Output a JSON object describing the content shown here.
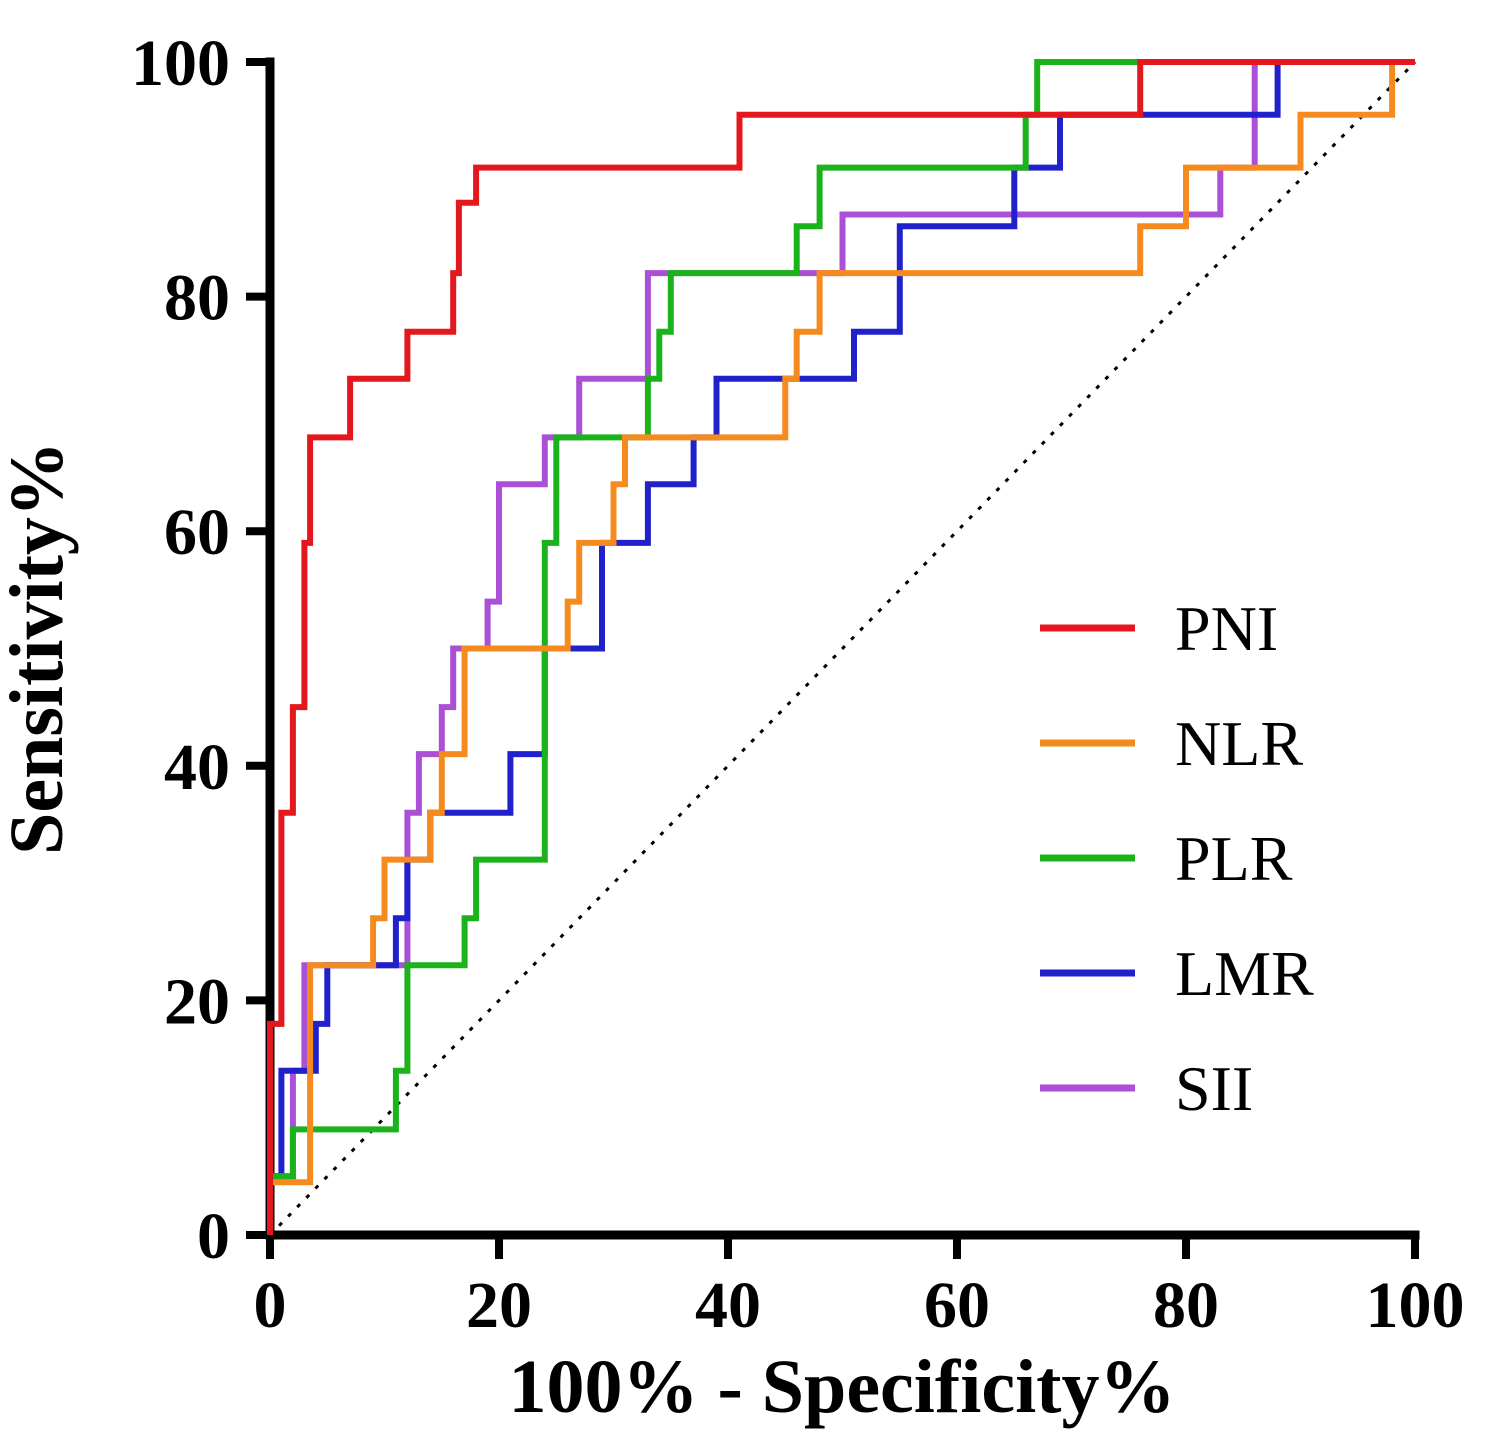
{
  "chart_data": {
    "type": "line",
    "subtype": "roc-curves",
    "title": "",
    "xlabel": "100% - Specificity%",
    "ylabel": "Sensitivity%",
    "xlim": [
      0,
      100
    ],
    "ylim": [
      0,
      100
    ],
    "xticks": [
      "0",
      "20",
      "40",
      "60",
      "80",
      "100"
    ],
    "ytick_values": [
      0,
      20,
      40,
      60,
      80,
      100
    ],
    "yticks": [
      "0",
      "20",
      "40",
      "60",
      "80",
      "100"
    ],
    "xtick_values": [
      0,
      20,
      40,
      60,
      80,
      100
    ],
    "grid": false,
    "legend_position": "inside-right",
    "reference_line": {
      "name": "chance-diagonal",
      "style": "dotted",
      "color": "#000000",
      "points": [
        [
          0,
          0
        ],
        [
          100,
          100
        ]
      ]
    },
    "series": [
      {
        "name": "PNI",
        "color": "#e4181c",
        "points": [
          [
            0,
            0
          ],
          [
            0,
            18
          ],
          [
            1,
            18
          ],
          [
            1,
            36
          ],
          [
            2,
            36
          ],
          [
            2,
            45
          ],
          [
            3,
            45
          ],
          [
            3,
            59
          ],
          [
            3.5,
            59
          ],
          [
            3.5,
            68
          ],
          [
            7,
            68
          ],
          [
            7,
            73
          ],
          [
            12,
            73
          ],
          [
            12,
            77
          ],
          [
            16,
            77
          ],
          [
            16,
            82
          ],
          [
            16.5,
            82
          ],
          [
            16.5,
            88
          ],
          [
            18,
            88
          ],
          [
            18,
            91
          ],
          [
            41,
            91
          ],
          [
            41,
            95.5
          ],
          [
            76,
            95.5
          ],
          [
            76,
            100
          ],
          [
            100,
            100
          ]
        ]
      },
      {
        "name": "NLR",
        "color": "#f58b1f",
        "points": [
          [
            0,
            0
          ],
          [
            0,
            4.5
          ],
          [
            3.5,
            4.5
          ],
          [
            3.5,
            23
          ],
          [
            9,
            23
          ],
          [
            9,
            27
          ],
          [
            10,
            27
          ],
          [
            10,
            32
          ],
          [
            14,
            32
          ],
          [
            14,
            36
          ],
          [
            15,
            36
          ],
          [
            15,
            41
          ],
          [
            17,
            41
          ],
          [
            17,
            50
          ],
          [
            26,
            50
          ],
          [
            26,
            54
          ],
          [
            27,
            54
          ],
          [
            27,
            59
          ],
          [
            30,
            59
          ],
          [
            30,
            64
          ],
          [
            31,
            64
          ],
          [
            31,
            68
          ],
          [
            45,
            68
          ],
          [
            45,
            73
          ],
          [
            46,
            73
          ],
          [
            46,
            77
          ],
          [
            48,
            77
          ],
          [
            48,
            82
          ],
          [
            76,
            82
          ],
          [
            76,
            86
          ],
          [
            80,
            86
          ],
          [
            80,
            91
          ],
          [
            90,
            91
          ],
          [
            90,
            95.5
          ],
          [
            98,
            95.5
          ],
          [
            98,
            100
          ],
          [
            100,
            100
          ]
        ]
      },
      {
        "name": "PLR",
        "color": "#1cb21c",
        "points": [
          [
            0,
            0
          ],
          [
            0,
            5
          ],
          [
            2,
            5
          ],
          [
            2,
            9
          ],
          [
            11,
            9
          ],
          [
            11,
            14
          ],
          [
            12,
            14
          ],
          [
            12,
            23
          ],
          [
            17,
            23
          ],
          [
            17,
            27
          ],
          [
            18,
            27
          ],
          [
            18,
            32
          ],
          [
            24,
            32
          ],
          [
            24,
            59
          ],
          [
            25,
            59
          ],
          [
            25,
            68
          ],
          [
            33,
            68
          ],
          [
            33,
            73
          ],
          [
            34,
            73
          ],
          [
            34,
            77
          ],
          [
            35,
            77
          ],
          [
            35,
            82
          ],
          [
            46,
            82
          ],
          [
            46,
            86
          ],
          [
            48,
            86
          ],
          [
            48,
            91
          ],
          [
            66,
            91
          ],
          [
            66,
            95.5
          ],
          [
            67,
            95.5
          ],
          [
            67,
            100
          ],
          [
            100,
            100
          ]
        ]
      },
      {
        "name": "LMR",
        "color": "#2121cc",
        "points": [
          [
            0,
            0
          ],
          [
            0,
            5
          ],
          [
            1,
            5
          ],
          [
            1,
            14
          ],
          [
            4,
            14
          ],
          [
            4,
            18
          ],
          [
            5,
            18
          ],
          [
            5,
            23
          ],
          [
            11,
            23
          ],
          [
            11,
            27
          ],
          [
            12,
            27
          ],
          [
            12,
            32
          ],
          [
            14,
            32
          ],
          [
            14,
            36
          ],
          [
            21,
            36
          ],
          [
            21,
            41
          ],
          [
            24,
            41
          ],
          [
            24,
            50
          ],
          [
            29,
            50
          ],
          [
            29,
            59
          ],
          [
            33,
            59
          ],
          [
            33,
            64
          ],
          [
            37,
            64
          ],
          [
            37,
            68
          ],
          [
            39,
            68
          ],
          [
            39,
            73
          ],
          [
            51,
            73
          ],
          [
            51,
            77
          ],
          [
            55,
            77
          ],
          [
            55,
            86
          ],
          [
            65,
            86
          ],
          [
            65,
            91
          ],
          [
            69,
            91
          ],
          [
            69,
            95.5
          ],
          [
            88,
            95.5
          ],
          [
            88,
            100
          ],
          [
            100,
            100
          ]
        ]
      },
      {
        "name": "SII",
        "color": "#ab4fd6",
        "points": [
          [
            0,
            0
          ],
          [
            0,
            5
          ],
          [
            2,
            5
          ],
          [
            2,
            14
          ],
          [
            3,
            14
          ],
          [
            3,
            23
          ],
          [
            12,
            23
          ],
          [
            12,
            36
          ],
          [
            13,
            36
          ],
          [
            13,
            41
          ],
          [
            15,
            41
          ],
          [
            15,
            45
          ],
          [
            16,
            45
          ],
          [
            16,
            50
          ],
          [
            19,
            50
          ],
          [
            19,
            54
          ],
          [
            20,
            54
          ],
          [
            20,
            64
          ],
          [
            24,
            64
          ],
          [
            24,
            68
          ],
          [
            27,
            68
          ],
          [
            27,
            73
          ],
          [
            33,
            73
          ],
          [
            33,
            82
          ],
          [
            50,
            82
          ],
          [
            50,
            87
          ],
          [
            83,
            87
          ],
          [
            83,
            91
          ],
          [
            86,
            91
          ],
          [
            86,
            100
          ],
          [
            100,
            100
          ]
        ]
      }
    ],
    "legend_entries": [
      "PNI",
      "NLR",
      "PLR",
      "LMR",
      "SII"
    ],
    "axis_color": "#000000"
  }
}
